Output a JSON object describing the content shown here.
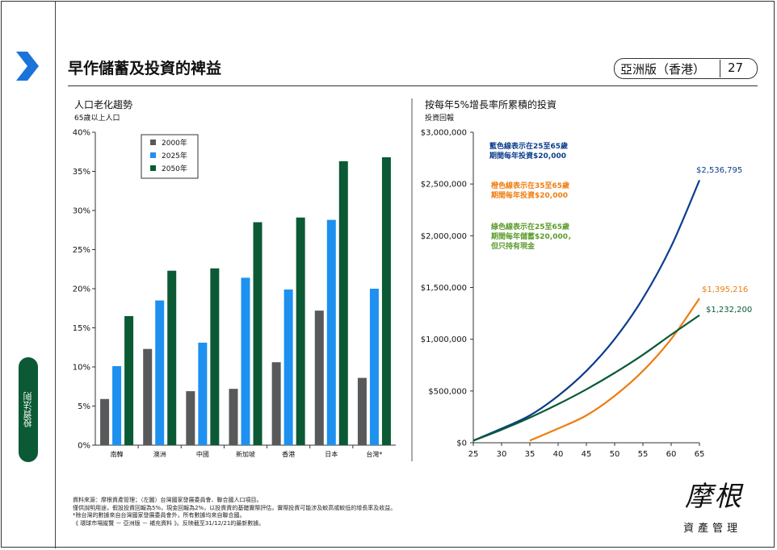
{
  "slide": {
    "title": "早作儲蓄及投資的裨益",
    "region": "亞洲版（香港）",
    "page": "27",
    "side_tab": "投資法則",
    "colors": {
      "accent": "#1a73d9",
      "tab": "#0b5a35"
    },
    "notes": [
      "資料來源：摩根資產管理；（左圖）台灣國家發展委員會、聯合國人口項目。",
      "僅供說明用途，假設投資回報為5%，現金回報為2%，以投資資的基礎實際評估，實際投資可能涉及較高或較低的增長率及收益。",
      "*除台灣的數據來自台灣國家發展委員會外，所有數據均來自聯合國。",
      "《 環球市場縱覽 － 亞洲版 － 補充資料 》。反映截至31/12/21的最新數據。"
    ],
    "logo_main": "摩根",
    "logo_sub": "資產管理"
  },
  "chart_data": [
    {
      "type": "bar",
      "title": "人口老化趨勢",
      "subtitle": "65歲以上人口",
      "categories": [
        "南韓",
        "澳洲",
        "中國",
        "新加坡",
        "香港",
        "日本",
        "台灣*"
      ],
      "series": [
        {
          "name": "2000年",
          "color": "#58595b",
          "values": [
            5.9,
            12.3,
            6.9,
            7.2,
            10.6,
            17.2,
            8.6
          ]
        },
        {
          "name": "2025年",
          "color": "#1e90f0",
          "values": [
            10.1,
            18.5,
            13.1,
            21.4,
            19.9,
            28.8,
            20.0
          ]
        },
        {
          "name": "2050年",
          "color": "#0b5a35",
          "values": [
            16.5,
            22.3,
            22.6,
            28.5,
            29.1,
            36.3,
            36.8
          ]
        }
      ],
      "ylim": [
        0,
        40
      ],
      "yticks": [
        "0%",
        "5%",
        "10%",
        "15%",
        "20%",
        "25%",
        "30%",
        "35%",
        "40%"
      ],
      "legend": "top-left"
    },
    {
      "type": "line",
      "title": "按每年5%增長率所累積的投資",
      "subtitle": "投資回報",
      "x": [
        25,
        30,
        35,
        40,
        45,
        50,
        55,
        60,
        65
      ],
      "xticks": [
        "25",
        "30",
        "35",
        "40",
        "45",
        "50",
        "55",
        "60",
        "65"
      ],
      "yticks": [
        "$0",
        "$500,000",
        "$1,000,000",
        "$1,500,000",
        "$2,000,000",
        "$2,500,000",
        "$3,000,000"
      ],
      "ylim": [
        0,
        3000000
      ],
      "xlim": [
        25,
        65
      ],
      "series": [
        {
          "name": "藍色線表示在25至65歲期間每年投資$20,000",
          "color": "#0b3d8c",
          "x": [
            25,
            30,
            35,
            40,
            45,
            50,
            55,
            60,
            65
          ],
          "values": [
            21000,
            137000,
            264000,
            453000,
            694000,
            1002000,
            1395000,
            1897000,
            2536795
          ],
          "end_label": "$2,536,795"
        },
        {
          "name": "橙色線表示在35至65歲期間每年投資$20,000",
          "color": "#ee7d10",
          "x": [
            35,
            40,
            45,
            50,
            55,
            60,
            65
          ],
          "values": [
            21000,
            137000,
            264000,
            453000,
            694000,
            1002000,
            1395216
          ],
          "end_label": "$1,395,216"
        },
        {
          "name": "綠色線表示在25至65歲期間每年儲蓄$20,000，但只持有現金",
          "color": "#0b5a35",
          "x": [
            25,
            30,
            35,
            40,
            45,
            50,
            55,
            60,
            65
          ],
          "values": [
            20000,
            126000,
            243000,
            373000,
            516000,
            675000,
            850000,
            1044000,
            1232200
          ],
          "end_label": "$1,232,200"
        }
      ],
      "annotations": [
        {
          "lines": [
            "藍色線表示在25至65歲",
            "期間每年投資$20,000"
          ],
          "color": "#0b3d8c"
        },
        {
          "lines": [
            "橙色線表示在35至65歲",
            "期間每年投資$20,000"
          ],
          "color": "#ee7d10"
        },
        {
          "lines": [
            "綠色線表示在25至65歲",
            "期間每年儲蓄$20,000，",
            "但只持有現金"
          ],
          "color": "#5a9a2a"
        }
      ]
    }
  ]
}
